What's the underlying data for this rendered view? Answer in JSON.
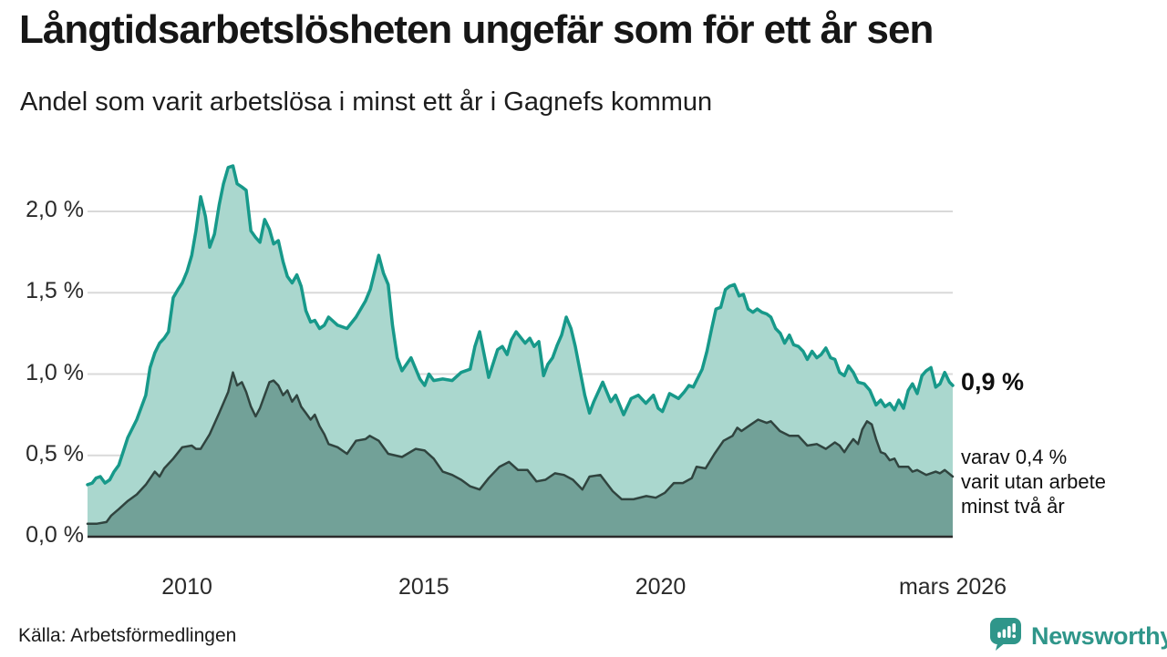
{
  "colors": {
    "brand_teal": "#2f968a",
    "one_year_stroke": "#17998a",
    "one_year_fill": "#aad7ce",
    "two_year_stroke": "#30443f",
    "two_year_fill": "#72a198",
    "gridline": "#d9d9d9",
    "baseline": "#2b2b2b"
  },
  "footer": {
    "source": "Källa: Arbetsförmedlingen",
    "brand": "Newsworthy"
  },
  "chart_data": {
    "type": "area",
    "title": "Långtidsarbetslösheten ungefär som för ett år sen",
    "subtitle": "Andel som varit arbetslösa i minst ett år i Gagnefs kommun",
    "grid": true,
    "legend_position": "none",
    "x_axis": {
      "range": [
        2007.9,
        2026.17
      ],
      "ticks": [
        {
          "value": 2010,
          "label": "2010"
        },
        {
          "value": 2015,
          "label": "2015"
        },
        {
          "value": 2020,
          "label": "2020"
        },
        {
          "value": 2026.17,
          "label": "mars 2026"
        }
      ]
    },
    "y_axis": {
      "range": [
        0,
        2.4
      ],
      "unit": "%",
      "ticks": [
        {
          "value": 0,
          "label": "0,0 %"
        },
        {
          "value": 0.5,
          "label": "0,5 %"
        },
        {
          "value": 1.0,
          "label": "1,0 %"
        },
        {
          "value": 1.5,
          "label": "1,5 %"
        },
        {
          "value": 2.0,
          "label": "2,0 %"
        }
      ]
    },
    "annotations": {
      "end_value": "0,9 %",
      "end_sub_lines": [
        "varav 0,4 %",
        "varit utan arbete",
        "minst två år"
      ]
    },
    "series": [
      {
        "id": "one-year",
        "name": "Andel arbetslösa minst ett år",
        "stroke": "#17998a",
        "fill": "#aad7ce",
        "end_value_pct": 0.9,
        "points": [
          [
            2007.9,
            0.32
          ],
          [
            2008.0,
            0.33
          ],
          [
            2008.08,
            0.36
          ],
          [
            2008.17,
            0.37
          ],
          [
            2008.27,
            0.33
          ],
          [
            2008.37,
            0.35
          ],
          [
            2008.46,
            0.4
          ],
          [
            2008.56,
            0.44
          ],
          [
            2008.65,
            0.52
          ],
          [
            2008.75,
            0.61
          ],
          [
            2008.94,
            0.72
          ],
          [
            2009.13,
            0.87
          ],
          [
            2009.22,
            1.04
          ],
          [
            2009.32,
            1.13
          ],
          [
            2009.42,
            1.19
          ],
          [
            2009.52,
            1.22
          ],
          [
            2009.61,
            1.26
          ],
          [
            2009.71,
            1.47
          ],
          [
            2009.81,
            1.52
          ],
          [
            2009.9,
            1.56
          ],
          [
            2010.0,
            1.63
          ],
          [
            2010.1,
            1.73
          ],
          [
            2010.19,
            1.88
          ],
          [
            2010.29,
            2.09
          ],
          [
            2010.39,
            1.97
          ],
          [
            2010.48,
            1.78
          ],
          [
            2010.58,
            1.86
          ],
          [
            2010.68,
            2.04
          ],
          [
            2010.77,
            2.17
          ],
          [
            2010.87,
            2.27
          ],
          [
            2010.97,
            2.28
          ],
          [
            2011.06,
            2.17
          ],
          [
            2011.16,
            2.15
          ],
          [
            2011.25,
            2.13
          ],
          [
            2011.35,
            1.88
          ],
          [
            2011.45,
            1.84
          ],
          [
            2011.54,
            1.81
          ],
          [
            2011.64,
            1.95
          ],
          [
            2011.74,
            1.89
          ],
          [
            2011.83,
            1.8
          ],
          [
            2011.93,
            1.82
          ],
          [
            2012.03,
            1.69
          ],
          [
            2012.12,
            1.6
          ],
          [
            2012.22,
            1.56
          ],
          [
            2012.32,
            1.61
          ],
          [
            2012.41,
            1.54
          ],
          [
            2012.51,
            1.39
          ],
          [
            2012.61,
            1.32
          ],
          [
            2012.7,
            1.33
          ],
          [
            2012.8,
            1.28
          ],
          [
            2012.9,
            1.3
          ],
          [
            2012.99,
            1.35
          ],
          [
            2013.18,
            1.3
          ],
          [
            2013.38,
            1.28
          ],
          [
            2013.57,
            1.35
          ],
          [
            2013.77,
            1.45
          ],
          [
            2013.87,
            1.52
          ],
          [
            2014.05,
            1.73
          ],
          [
            2014.15,
            1.62
          ],
          [
            2014.25,
            1.55
          ],
          [
            2014.34,
            1.3
          ],
          [
            2014.44,
            1.1
          ],
          [
            2014.54,
            1.02
          ],
          [
            2014.73,
            1.1
          ],
          [
            2014.92,
            0.97
          ],
          [
            2015.02,
            0.93
          ],
          [
            2015.11,
            1.0
          ],
          [
            2015.21,
            0.96
          ],
          [
            2015.4,
            0.97
          ],
          [
            2015.6,
            0.96
          ],
          [
            2015.79,
            1.01
          ],
          [
            2015.98,
            1.03
          ],
          [
            2016.08,
            1.17
          ],
          [
            2016.18,
            1.26
          ],
          [
            2016.37,
            0.98
          ],
          [
            2016.56,
            1.15
          ],
          [
            2016.66,
            1.17
          ],
          [
            2016.76,
            1.12
          ],
          [
            2016.85,
            1.21
          ],
          [
            2016.95,
            1.26
          ],
          [
            2017.14,
            1.19
          ],
          [
            2017.24,
            1.22
          ],
          [
            2017.33,
            1.17
          ],
          [
            2017.43,
            1.2
          ],
          [
            2017.53,
            0.99
          ],
          [
            2017.62,
            1.06
          ],
          [
            2017.72,
            1.1
          ],
          [
            2017.82,
            1.18
          ],
          [
            2017.91,
            1.24
          ],
          [
            2018.01,
            1.35
          ],
          [
            2018.11,
            1.28
          ],
          [
            2018.2,
            1.17
          ],
          [
            2018.3,
            1.02
          ],
          [
            2018.4,
            0.87
          ],
          [
            2018.5,
            0.76
          ],
          [
            2018.59,
            0.83
          ],
          [
            2018.78,
            0.95
          ],
          [
            2018.95,
            0.83
          ],
          [
            2019.05,
            0.87
          ],
          [
            2019.22,
            0.75
          ],
          [
            2019.38,
            0.85
          ],
          [
            2019.53,
            0.87
          ],
          [
            2019.69,
            0.82
          ],
          [
            2019.85,
            0.87
          ],
          [
            2019.95,
            0.79
          ],
          [
            2020.04,
            0.77
          ],
          [
            2020.19,
            0.88
          ],
          [
            2020.38,
            0.85
          ],
          [
            2020.5,
            0.89
          ],
          [
            2020.6,
            0.93
          ],
          [
            2020.69,
            0.92
          ],
          [
            2020.88,
            1.03
          ],
          [
            2020.98,
            1.14
          ],
          [
            2021.08,
            1.28
          ],
          [
            2021.17,
            1.4
          ],
          [
            2021.27,
            1.41
          ],
          [
            2021.37,
            1.52
          ],
          [
            2021.46,
            1.54
          ],
          [
            2021.56,
            1.55
          ],
          [
            2021.66,
            1.48
          ],
          [
            2021.75,
            1.49
          ],
          [
            2021.85,
            1.4
          ],
          [
            2021.95,
            1.38
          ],
          [
            2022.04,
            1.4
          ],
          [
            2022.14,
            1.38
          ],
          [
            2022.24,
            1.37
          ],
          [
            2022.33,
            1.35
          ],
          [
            2022.43,
            1.28
          ],
          [
            2022.53,
            1.25
          ],
          [
            2022.62,
            1.19
          ],
          [
            2022.72,
            1.24
          ],
          [
            2022.81,
            1.18
          ],
          [
            2022.91,
            1.17
          ],
          [
            2023.01,
            1.14
          ],
          [
            2023.1,
            1.09
          ],
          [
            2023.2,
            1.14
          ],
          [
            2023.3,
            1.1
          ],
          [
            2023.39,
            1.12
          ],
          [
            2023.49,
            1.16
          ],
          [
            2023.59,
            1.1
          ],
          [
            2023.68,
            1.09
          ],
          [
            2023.78,
            1.01
          ],
          [
            2023.88,
            0.99
          ],
          [
            2023.97,
            1.05
          ],
          [
            2024.07,
            1.01
          ],
          [
            2024.17,
            0.95
          ],
          [
            2024.3,
            0.94
          ],
          [
            2024.42,
            0.9
          ],
          [
            2024.55,
            0.81
          ],
          [
            2024.65,
            0.84
          ],
          [
            2024.74,
            0.8
          ],
          [
            2024.84,
            0.82
          ],
          [
            2024.94,
            0.78
          ],
          [
            2025.03,
            0.84
          ],
          [
            2025.13,
            0.79
          ],
          [
            2025.23,
            0.9
          ],
          [
            2025.32,
            0.94
          ],
          [
            2025.42,
            0.88
          ],
          [
            2025.52,
            0.99
          ],
          [
            2025.61,
            1.02
          ],
          [
            2025.71,
            1.04
          ],
          [
            2025.81,
            0.92
          ],
          [
            2025.9,
            0.94
          ],
          [
            2026.0,
            1.01
          ],
          [
            2026.1,
            0.95
          ],
          [
            2026.17,
            0.93
          ]
        ]
      },
      {
        "id": "two-year",
        "name": "Andel arbetslösa minst två år",
        "stroke": "#30443f",
        "fill": "#72a198",
        "end_value_pct": 0.4,
        "points": [
          [
            2007.9,
            0.08
          ],
          [
            2008.1,
            0.08
          ],
          [
            2008.3,
            0.09
          ],
          [
            2008.4,
            0.13
          ],
          [
            2008.56,
            0.17
          ],
          [
            2008.75,
            0.22
          ],
          [
            2008.94,
            0.26
          ],
          [
            2009.13,
            0.32
          ],
          [
            2009.32,
            0.4
          ],
          [
            2009.42,
            0.37
          ],
          [
            2009.52,
            0.42
          ],
          [
            2009.71,
            0.48
          ],
          [
            2009.9,
            0.55
          ],
          [
            2010.1,
            0.56
          ],
          [
            2010.19,
            0.54
          ],
          [
            2010.29,
            0.54
          ],
          [
            2010.48,
            0.63
          ],
          [
            2010.68,
            0.76
          ],
          [
            2010.87,
            0.89
          ],
          [
            2010.97,
            1.01
          ],
          [
            2011.06,
            0.93
          ],
          [
            2011.16,
            0.95
          ],
          [
            2011.25,
            0.89
          ],
          [
            2011.35,
            0.8
          ],
          [
            2011.45,
            0.74
          ],
          [
            2011.54,
            0.79
          ],
          [
            2011.64,
            0.87
          ],
          [
            2011.74,
            0.95
          ],
          [
            2011.83,
            0.96
          ],
          [
            2011.93,
            0.93
          ],
          [
            2012.03,
            0.87
          ],
          [
            2012.12,
            0.9
          ],
          [
            2012.22,
            0.83
          ],
          [
            2012.32,
            0.87
          ],
          [
            2012.41,
            0.8
          ],
          [
            2012.51,
            0.76
          ],
          [
            2012.61,
            0.72
          ],
          [
            2012.7,
            0.75
          ],
          [
            2012.8,
            0.68
          ],
          [
            2012.9,
            0.63
          ],
          [
            2012.99,
            0.57
          ],
          [
            2013.18,
            0.55
          ],
          [
            2013.38,
            0.51
          ],
          [
            2013.57,
            0.59
          ],
          [
            2013.77,
            0.6
          ],
          [
            2013.86,
            0.62
          ],
          [
            2014.05,
            0.59
          ],
          [
            2014.25,
            0.51
          ],
          [
            2014.54,
            0.49
          ],
          [
            2014.83,
            0.54
          ],
          [
            2015.02,
            0.53
          ],
          [
            2015.21,
            0.48
          ],
          [
            2015.4,
            0.4
          ],
          [
            2015.6,
            0.38
          ],
          [
            2015.79,
            0.35
          ],
          [
            2015.98,
            0.31
          ],
          [
            2016.18,
            0.29
          ],
          [
            2016.37,
            0.36
          ],
          [
            2016.6,
            0.43
          ],
          [
            2016.8,
            0.46
          ],
          [
            2016.99,
            0.41
          ],
          [
            2017.19,
            0.41
          ],
          [
            2017.38,
            0.34
          ],
          [
            2017.57,
            0.35
          ],
          [
            2017.77,
            0.39
          ],
          [
            2017.96,
            0.38
          ],
          [
            2018.15,
            0.35
          ],
          [
            2018.35,
            0.29
          ],
          [
            2018.5,
            0.37
          ],
          [
            2018.73,
            0.38
          ],
          [
            2018.99,
            0.28
          ],
          [
            2019.18,
            0.23
          ],
          [
            2019.43,
            0.23
          ],
          [
            2019.7,
            0.25
          ],
          [
            2019.9,
            0.24
          ],
          [
            2020.09,
            0.27
          ],
          [
            2020.28,
            0.33
          ],
          [
            2020.47,
            0.33
          ],
          [
            2020.66,
            0.36
          ],
          [
            2020.76,
            0.43
          ],
          [
            2020.95,
            0.42
          ],
          [
            2021.14,
            0.51
          ],
          [
            2021.33,
            0.59
          ],
          [
            2021.52,
            0.62
          ],
          [
            2021.62,
            0.67
          ],
          [
            2021.71,
            0.65
          ],
          [
            2021.91,
            0.69
          ],
          [
            2022.06,
            0.72
          ],
          [
            2022.24,
            0.7
          ],
          [
            2022.33,
            0.71
          ],
          [
            2022.52,
            0.65
          ],
          [
            2022.72,
            0.62
          ],
          [
            2022.91,
            0.62
          ],
          [
            2023.1,
            0.56
          ],
          [
            2023.3,
            0.57
          ],
          [
            2023.49,
            0.54
          ],
          [
            2023.68,
            0.58
          ],
          [
            2023.78,
            0.56
          ],
          [
            2023.88,
            0.52
          ],
          [
            2023.97,
            0.56
          ],
          [
            2024.07,
            0.6
          ],
          [
            2024.17,
            0.57
          ],
          [
            2024.26,
            0.66
          ],
          [
            2024.36,
            0.71
          ],
          [
            2024.46,
            0.69
          ],
          [
            2024.55,
            0.6
          ],
          [
            2024.65,
            0.52
          ],
          [
            2024.74,
            0.51
          ],
          [
            2024.84,
            0.47
          ],
          [
            2024.94,
            0.48
          ],
          [
            2025.03,
            0.43
          ],
          [
            2025.23,
            0.43
          ],
          [
            2025.32,
            0.4
          ],
          [
            2025.42,
            0.41
          ],
          [
            2025.61,
            0.38
          ],
          [
            2025.81,
            0.4
          ],
          [
            2025.9,
            0.39
          ],
          [
            2026.0,
            0.41
          ],
          [
            2026.17,
            0.37
          ]
        ]
      }
    ]
  }
}
